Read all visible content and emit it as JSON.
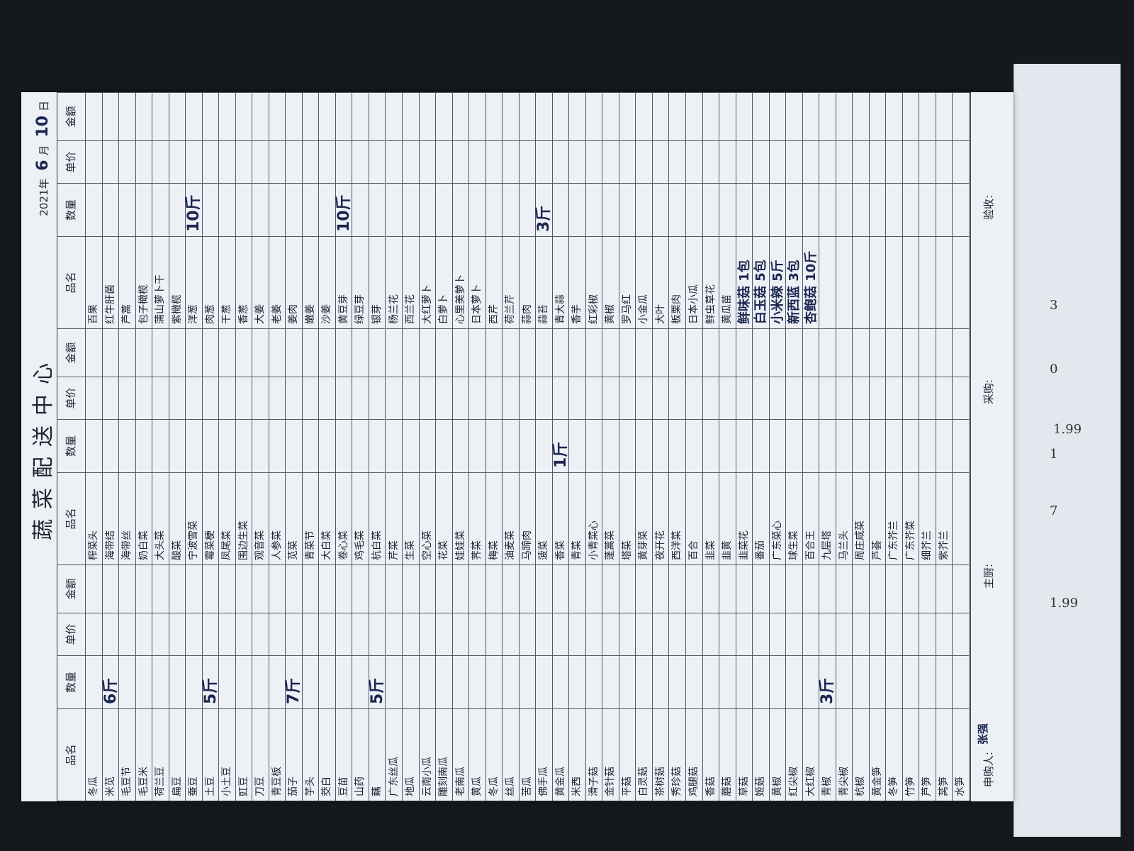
{
  "header": {
    "title": "蔬菜配送中心",
    "year": "2021",
    "month": "6",
    "day": "10",
    "year_label": "年",
    "month_label": "月",
    "day_label": "日"
  },
  "columns": [
    "品名",
    "数量",
    "单价",
    "金额"
  ],
  "groups": [
    {
      "items": [
        {
          "name": "冬瓜"
        },
        {
          "name": "米苋",
          "qty": "6斤"
        },
        {
          "name": "毛豆节"
        },
        {
          "name": "毛豆米"
        },
        {
          "name": "荷兰豆"
        },
        {
          "name": "扁豆"
        },
        {
          "name": "蚕豆"
        },
        {
          "name": "土豆",
          "qty": "5斤"
        },
        {
          "name": "小土豆"
        },
        {
          "name": "豇豆"
        },
        {
          "name": "刀豆"
        },
        {
          "name": "青豆板"
        },
        {
          "name": "茄子",
          "qty": "7斤"
        },
        {
          "name": "芋头"
        },
        {
          "name": "茭白"
        },
        {
          "name": "豆苗"
        },
        {
          "name": "山药"
        },
        {
          "name": "藕",
          "qty": "5斤"
        },
        {
          "name": "广东丝瓜"
        },
        {
          "name": "地瓜"
        },
        {
          "name": "云南小瓜"
        },
        {
          "name": "雕刻南瓜"
        },
        {
          "name": "老南瓜"
        },
        {
          "name": "黄瓜"
        },
        {
          "name": "冬瓜"
        },
        {
          "name": "丝瓜"
        },
        {
          "name": "苦瓜"
        },
        {
          "name": "佛手瓜"
        },
        {
          "name": "黄金瓜"
        },
        {
          "name": "米西"
        },
        {
          "name": "滑子菇"
        },
        {
          "name": "金针菇"
        },
        {
          "name": "平菇"
        },
        {
          "name": "白灵菇"
        },
        {
          "name": "茶树菇"
        },
        {
          "name": "秀珍菇"
        },
        {
          "name": "鸡腿菇"
        },
        {
          "name": "香菇"
        },
        {
          "name": "蘑菇"
        },
        {
          "name": "草菇"
        },
        {
          "name": "姬菇"
        },
        {
          "name": "黄椒"
        },
        {
          "name": "红尖椒"
        },
        {
          "name": "大红椒"
        },
        {
          "name": "青椒",
          "qty": "3斤"
        },
        {
          "name": "青尖椒"
        },
        {
          "name": "杭椒"
        },
        {
          "name": "黄金笋"
        },
        {
          "name": "冬笋"
        },
        {
          "name": "竹笋"
        },
        {
          "name": "芦笋"
        },
        {
          "name": "莴笋"
        },
        {
          "name": "水笋"
        }
      ]
    },
    {
      "items": [
        {
          "name": "榨菜头"
        },
        {
          "name": "海带结"
        },
        {
          "name": "海带丝"
        },
        {
          "name": "奶白菜"
        },
        {
          "name": "大头菜"
        },
        {
          "name": "酸菜"
        },
        {
          "name": "宁波雪菜"
        },
        {
          "name": "霉菜梗"
        },
        {
          "name": "凤尾菜"
        },
        {
          "name": "围边生菜"
        },
        {
          "name": "观音菜"
        },
        {
          "name": "人参菜"
        },
        {
          "name": "苋菜"
        },
        {
          "name": "青菜节"
        },
        {
          "name": "大白菜"
        },
        {
          "name": "卷心菜"
        },
        {
          "name": "鸡毛菜"
        },
        {
          "name": "杭白菜"
        },
        {
          "name": "芹菜"
        },
        {
          "name": "生菜"
        },
        {
          "name": "空心菜"
        },
        {
          "name": "花菜"
        },
        {
          "name": "娃娃菜"
        },
        {
          "name": "荠菜"
        },
        {
          "name": "梅菜"
        },
        {
          "name": "油麦菜"
        },
        {
          "name": "马蹄肉"
        },
        {
          "name": "菠菜"
        },
        {
          "name": "香菜",
          "qty": "1斤"
        },
        {
          "name": "青菜"
        },
        {
          "name": "小青菜心"
        },
        {
          "name": "蓬蒿菜"
        },
        {
          "name": "塔菜"
        },
        {
          "name": "黄芽菜"
        },
        {
          "name": "夜开花"
        },
        {
          "name": "西洋菜"
        },
        {
          "name": "百合"
        },
        {
          "name": "韭菜"
        },
        {
          "name": "韭黄"
        },
        {
          "name": "韭菜花"
        },
        {
          "name": "番茄"
        },
        {
          "name": "广东菜心"
        },
        {
          "name": "球生菜"
        },
        {
          "name": "百合王"
        },
        {
          "name": "九层塔"
        },
        {
          "name": "马兰头"
        },
        {
          "name": "周庄咸菜"
        },
        {
          "name": "芦荟"
        },
        {
          "name": "广东芥兰"
        },
        {
          "name": "广东芥菜"
        },
        {
          "name": "细芥兰"
        },
        {
          "name": "紫芥兰"
        }
      ]
    },
    {
      "items": [
        {
          "name": "百果"
        },
        {
          "name": "红牛肝菌"
        },
        {
          "name": "芦蒿"
        },
        {
          "name": "包子橄榄"
        },
        {
          "name": "蒲山萝卜干"
        },
        {
          "name": "紫橄榄"
        },
        {
          "name": "洋葱",
          "qty": "10斤"
        },
        {
          "name": "肉葱"
        },
        {
          "name": "干葱"
        },
        {
          "name": "香葱"
        },
        {
          "name": "大姜"
        },
        {
          "name": "老姜"
        },
        {
          "name": "姜肉"
        },
        {
          "name": "嫩姜"
        },
        {
          "name": "沙姜"
        },
        {
          "name": "黄豆芽",
          "qty": "10斤"
        },
        {
          "name": "绿豆芽"
        },
        {
          "name": "银芽"
        },
        {
          "name": "杨兰花"
        },
        {
          "name": "西兰花"
        },
        {
          "name": "大红萝卜"
        },
        {
          "name": "白萝卜"
        },
        {
          "name": "心里美萝卜"
        },
        {
          "name": "日本萝卜"
        },
        {
          "name": "西芹"
        },
        {
          "name": "荷兰芹"
        },
        {
          "name": "蒜肉"
        },
        {
          "name": "蒜苔",
          "qty": "3斤"
        },
        {
          "name": "青大蒜"
        },
        {
          "name": "香芋"
        },
        {
          "name": "红彩椒"
        },
        {
          "name": "黄椒"
        },
        {
          "name": "罗马红"
        },
        {
          "name": "小金瓜"
        },
        {
          "name": "大叶"
        },
        {
          "name": "板栗肉"
        },
        {
          "name": "日本小瓜"
        },
        {
          "name": "鲜虫草花"
        },
        {
          "name": "黄瓜苗"
        }
      ],
      "handwritten": [
        "鲜味菇 1包",
        "白玉菇 5包",
        "小米辣 5斤",
        "新西蓝 3包",
        "杏鲍菇 10斤"
      ]
    }
  ],
  "footer": {
    "requester_label": "申购人:",
    "requester": "张强",
    "chef_label": "主厨:",
    "buyer_label": "采购:",
    "receiver_label": "验收:"
  },
  "side_paper": [
    "3",
    "0",
    "1",
    "7",
    "1.99",
    "1.99"
  ]
}
